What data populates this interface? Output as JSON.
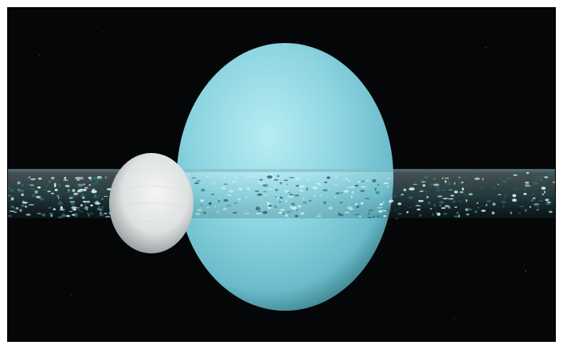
{
  "scene": {
    "subject": "planet-with-rings-and-moon",
    "colors": {
      "space": "#050607",
      "planet_light": "#a9e6f0",
      "planet_mid": "#7fcfdc",
      "planet_dark": "#2f6f7a",
      "moon_light": "#f2f3f3",
      "moon_dark": "#8e9596",
      "ring_light": "#c9eef2",
      "ring_dark": "#3b7f89"
    }
  }
}
